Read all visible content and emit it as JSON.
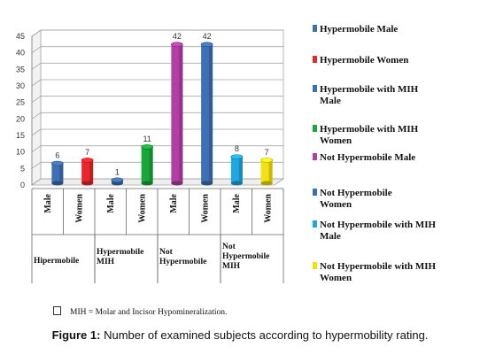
{
  "chart_data": {
    "type": "bar",
    "categories": [
      "Male",
      "Women",
      "Male",
      "Women",
      "Male",
      "Women",
      "Male",
      "Women"
    ],
    "groups": [
      {
        "label_lines": [
          "Hipermobile"
        ],
        "span": [
          0,
          1
        ]
      },
      {
        "label_lines": [
          "Hypermobile",
          "MIH"
        ],
        "span": [
          2,
          3
        ]
      },
      {
        "label_lines": [
          "Not",
          "Hypermobile"
        ],
        "span": [
          4,
          5
        ]
      },
      {
        "label_lines": [
          "Not",
          "Hypermobile",
          "MIH"
        ],
        "span": [
          6,
          7
        ]
      }
    ],
    "series": [
      {
        "name": "Hypermobile Male",
        "value": 6,
        "color": "#3f6fb5"
      },
      {
        "name": "Hypermobile Women",
        "value": 7,
        "color": "#e8262b"
      },
      {
        "name": "Hypermobile with MIH Male",
        "value": 1,
        "color": "#3f6fb5"
      },
      {
        "name": "Hypermobile with MIH Women",
        "value": 11,
        "color": "#19a838"
      },
      {
        "name": "Not Hypermobile Male",
        "value": 42,
        "color": "#b33fa6"
      },
      {
        "name": "Not Hypermobile Women",
        "value": 42,
        "color": "#3f6fb5"
      },
      {
        "name": "Not Hypermobile with MIH Male",
        "value": 8,
        "color": "#1ea7e0"
      },
      {
        "name": "Not Hypermobile with MIH Women",
        "value": 7,
        "color": "#f4e10f"
      }
    ],
    "legend_labels": [
      "Hypermobile Male",
      "Hypermobile Women",
      "Hypermobile with MIH Male",
      "Hypermobile with MIH Women",
      "Not Hypermobile Male",
      "Not Hypermobile Women",
      "Not Hypermobile with MIH Male",
      "Not Hypermobile with MIH Women"
    ],
    "ylim": [
      0,
      45
    ],
    "yticks": [
      0,
      5,
      10,
      15,
      20,
      25,
      30,
      35,
      40,
      45
    ],
    "grid": true,
    "legend_position": "right"
  },
  "footnote": {
    "text": "MIH = Molar and Incisor Hypomineralization."
  },
  "caption": {
    "label": "Figure 1:",
    "text": " Number of examined subjects according to hypermobility rating."
  }
}
